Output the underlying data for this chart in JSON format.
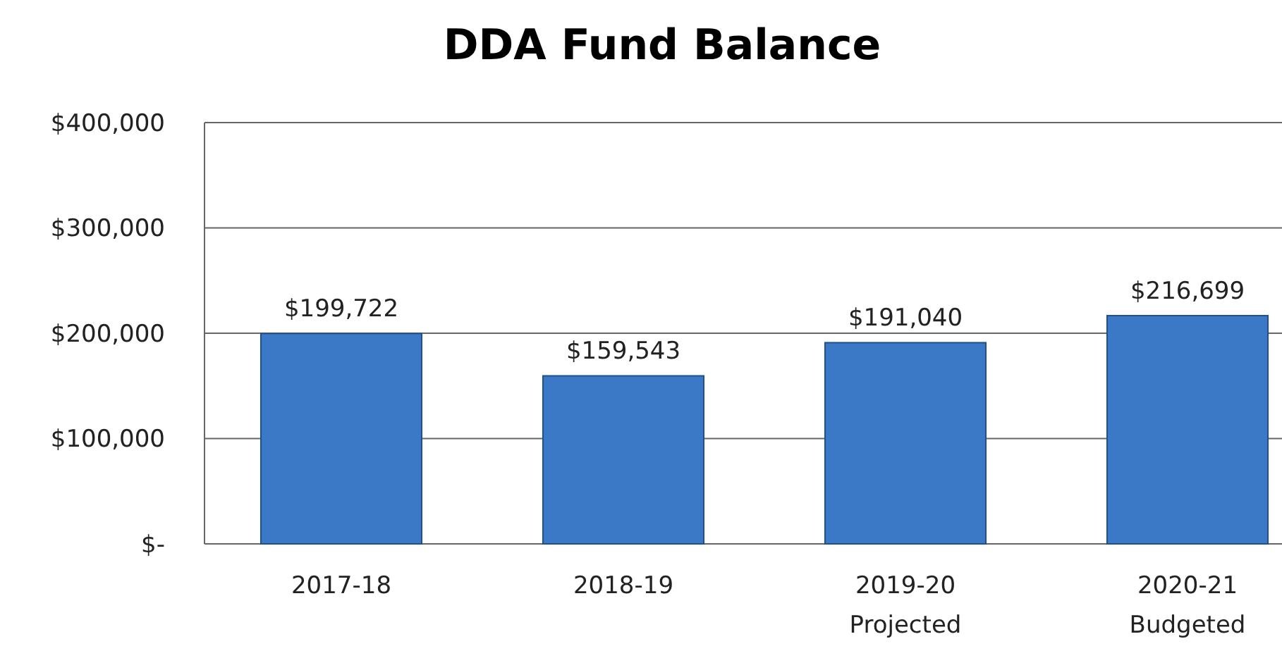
{
  "chart_data": {
    "type": "bar",
    "title": "DDA Fund Balance",
    "categories": [
      "2017-18",
      "2018-19",
      "2019-20\nProjected",
      "2020-21\nBudgeted"
    ],
    "values": [
      199722,
      159543,
      191040,
      216699
    ],
    "value_labels": [
      "$199,722",
      "$159,543",
      "$191,040",
      "$216,699"
    ],
    "color": "#3b78c6",
    "ylim": [
      0,
      400000
    ],
    "yticks": [
      {
        "value": 0,
        "label": "$-"
      },
      {
        "value": 100000,
        "label": "$100,000"
      },
      {
        "value": 200000,
        "label": "$200,000"
      },
      {
        "value": 300000,
        "label": "$300,000"
      },
      {
        "value": 400000,
        "label": "$400,000"
      }
    ],
    "grid": "y"
  }
}
